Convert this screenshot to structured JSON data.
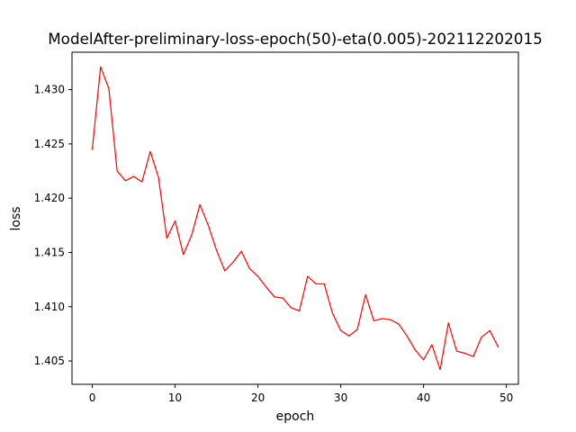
{
  "chart_data": {
    "type": "line",
    "title": "ModelAfter-preliminary-loss-epoch(50)-eta(0.005)-202112202015",
    "xlabel": "epoch",
    "ylabel": "loss",
    "xlim": [
      -2.45,
      51.45
    ],
    "ylim": [
      1.40285,
      1.43345
    ],
    "xticks": [
      0,
      10,
      20,
      30,
      40,
      50
    ],
    "xtick_labels": [
      "0",
      "10",
      "20",
      "30",
      "40",
      "50"
    ],
    "yticks": [
      1.405,
      1.41,
      1.415,
      1.42,
      1.425,
      1.43
    ],
    "ytick_labels": [
      "1.405",
      "1.410",
      "1.415",
      "1.420",
      "1.425",
      "1.430"
    ],
    "grid": false,
    "series": [
      {
        "color": "#ff0000",
        "x": [
          0,
          1,
          2,
          3,
          4,
          5,
          6,
          7,
          8,
          9,
          10,
          11,
          12,
          13,
          14,
          15,
          16,
          17,
          18,
          19,
          20,
          21,
          22,
          23,
          24,
          25,
          26,
          27,
          28,
          29,
          30,
          31,
          32,
          33,
          34,
          35,
          36,
          37,
          38,
          39,
          40,
          41,
          42,
          43,
          44,
          45,
          46,
          47,
          48,
          49
        ],
        "values": [
          1.4245,
          1.4321,
          1.4301,
          1.4225,
          1.4216,
          1.422,
          1.4215,
          1.4243,
          1.4219,
          1.4163,
          1.4179,
          1.4148,
          1.4166,
          1.4194,
          1.4175,
          1.4152,
          1.4133,
          1.4141,
          1.4151,
          1.4135,
          1.4128,
          1.4118,
          1.4109,
          1.4108,
          1.4099,
          1.4096,
          1.4128,
          1.4121,
          1.4121,
          1.4094,
          1.4078,
          1.4073,
          1.4079,
          1.4111,
          1.4087,
          1.4089,
          1.4088,
          1.4084,
          1.4073,
          1.406,
          1.4051,
          1.4065,
          1.4042,
          1.4085,
          1.4059,
          1.4057,
          1.4054,
          1.4072,
          1.4078,
          1.4063
        ]
      }
    ]
  }
}
